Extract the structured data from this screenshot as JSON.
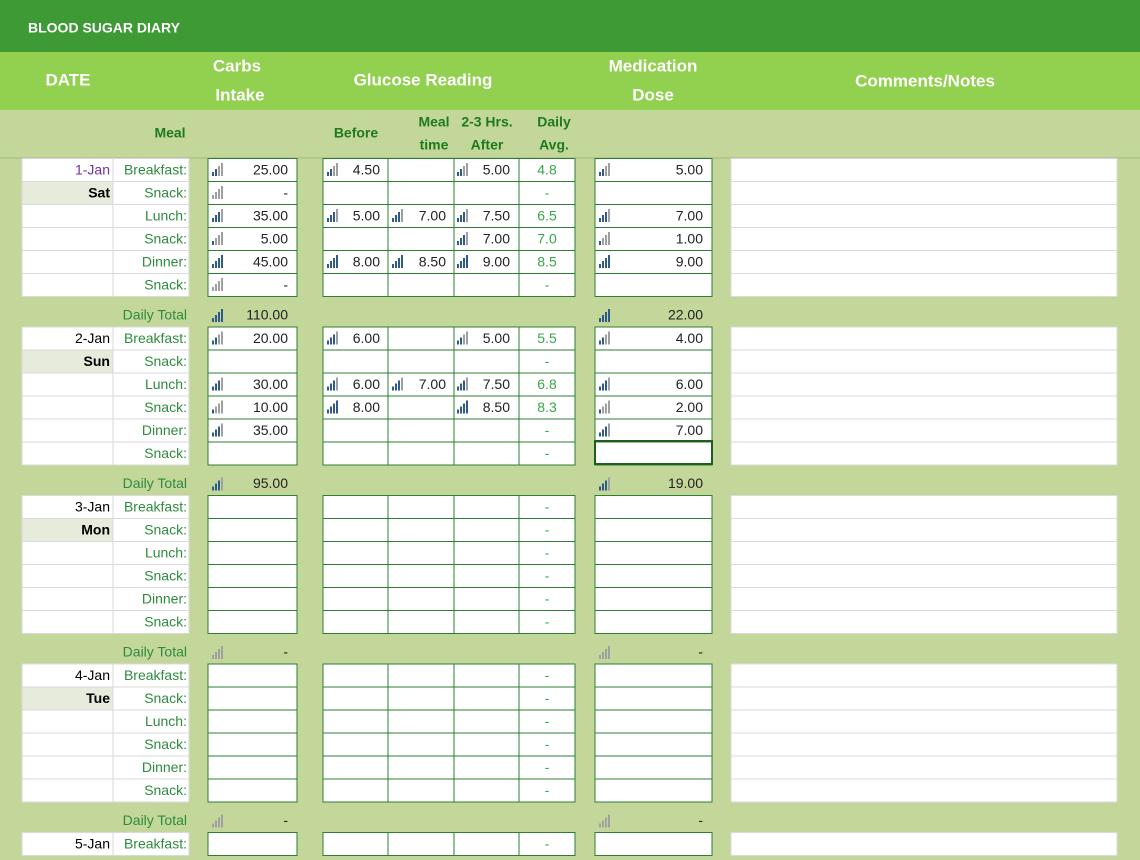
{
  "header": {
    "title": "BLOOD SUGAR DIARY",
    "columns": {
      "date": "DATE",
      "carbs": [
        "Carbs",
        "Intake"
      ],
      "glucose": "Glucose Reading",
      "medication": [
        "Medication",
        "Dose"
      ],
      "comments": "Comments/Notes"
    },
    "subheader": {
      "meal": "Meal",
      "before": "Before",
      "mealtime": [
        "Meal",
        "time"
      ],
      "after": [
        "2-3 Hrs.",
        "After"
      ],
      "avg": [
        "Daily",
        "Avg."
      ]
    }
  },
  "days": [
    {
      "date": "1-Jan",
      "weekday": "Sat",
      "rows": [
        {
          "meal": "Breakfast:",
          "carbs": "25.00",
          "before": "4.50",
          "after": "5.00",
          "avg": "4.8",
          "med": "5.00"
        },
        {
          "meal": "Snack:",
          "carbs": "-",
          "avg": "-"
        },
        {
          "meal": "Lunch:",
          "carbs": "35.00",
          "before": "5.00",
          "mealtime": "7.00",
          "after": "7.50",
          "avg": "6.5",
          "med": "7.00"
        },
        {
          "meal": "Snack:",
          "carbs": "5.00",
          "after": "7.00",
          "avg": "7.0",
          "med": "1.00"
        },
        {
          "meal": "Dinner:",
          "carbs": "45.00",
          "before": "8.00",
          "mealtime": "8.50",
          "after": "9.00",
          "avg": "8.5",
          "med": "9.00"
        },
        {
          "meal": "Snack:",
          "carbs": "-",
          "avg": "-"
        }
      ],
      "total_label": "Daily Total",
      "total_carbs": "110.00",
      "total_med": "22.00"
    },
    {
      "date": "2-Jan",
      "weekday": "Sun",
      "rows": [
        {
          "meal": "Breakfast:",
          "carbs": "20.00",
          "before": "6.00",
          "after": "5.00",
          "avg": "5.5",
          "med": "4.00"
        },
        {
          "meal": "Snack:",
          "avg": "-"
        },
        {
          "meal": "Lunch:",
          "carbs": "30.00",
          "before": "6.00",
          "mealtime": "7.00",
          "after": "7.50",
          "avg": "6.8",
          "med": "6.00"
        },
        {
          "meal": "Snack:",
          "carbs": "10.00",
          "before": "8.00",
          "after": "8.50",
          "avg": "8.3",
          "med": "2.00"
        },
        {
          "meal": "Dinner:",
          "carbs": "35.00",
          "avg": "-",
          "med": "7.00"
        },
        {
          "meal": "Snack:",
          "avg": "-"
        }
      ],
      "total_label": "Daily Total",
      "total_carbs": "95.00",
      "total_med": "19.00"
    },
    {
      "date": "3-Jan",
      "weekday": "Mon",
      "rows": [
        {
          "meal": "Breakfast:",
          "avg": "-"
        },
        {
          "meal": "Snack:",
          "avg": "-"
        },
        {
          "meal": "Lunch:",
          "avg": "-"
        },
        {
          "meal": "Snack:",
          "avg": "-"
        },
        {
          "meal": "Dinner:",
          "avg": "-"
        },
        {
          "meal": "Snack:",
          "avg": "-"
        }
      ],
      "total_label": "Daily Total",
      "total_carbs": "-",
      "total_med": "-"
    },
    {
      "date": "4-Jan",
      "weekday": "Tue",
      "rows": [
        {
          "meal": "Breakfast:",
          "avg": "-"
        },
        {
          "meal": "Snack:",
          "avg": "-"
        },
        {
          "meal": "Lunch:",
          "avg": "-"
        },
        {
          "meal": "Snack:",
          "avg": "-"
        },
        {
          "meal": "Dinner:",
          "avg": "-"
        },
        {
          "meal": "Snack:",
          "avg": "-"
        }
      ],
      "total_label": "Daily Total",
      "total_carbs": "-",
      "total_med": "-"
    },
    {
      "date": "5-Jan",
      "rows": [
        {
          "meal": "Breakfast:",
          "avg": "-"
        }
      ]
    }
  ]
}
